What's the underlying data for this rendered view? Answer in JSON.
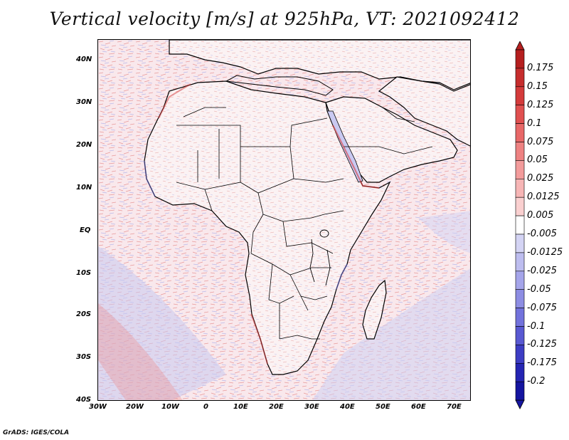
{
  "title": "Vertical velocity [m/s] at 925hPa, VT: 2021092412",
  "credit": "GrADS: IGES/COLA",
  "map": {
    "lat_labels": [
      "40N",
      "30N",
      "20N",
      "10N",
      "EQ",
      "10S",
      "20S",
      "30S",
      "40S"
    ],
    "lon_labels": [
      "30W",
      "20W",
      "10W",
      "0",
      "10E",
      "20E",
      "30E",
      "40E",
      "50E",
      "60E",
      "70E"
    ],
    "lon_range": [
      -30,
      75
    ],
    "lat_range": [
      -40,
      45
    ]
  },
  "colorbar": {
    "levels": [
      "0.175",
      "0.15",
      "0.125",
      "0.1",
      "0.075",
      "0.05",
      "0.025",
      "0.0125",
      "0.005",
      "-0.005",
      "-0.0125",
      "-0.025",
      "-0.05",
      "-0.075",
      "-0.1",
      "-0.125",
      "-0.175",
      "-0.2"
    ],
    "colors": [
      "#b51f1f",
      "#c62d2d",
      "#d43b3b",
      "#e05050",
      "#e86868",
      "#ee8282",
      "#f39c9c",
      "#f7b6b6",
      "#fad0d0",
      "#ffffff",
      "#d4d4f4",
      "#bdbdef",
      "#a5a5ea",
      "#8d8de3",
      "#7272dc",
      "#5959d2",
      "#3d3dc4",
      "#2525b3",
      "#1515a0"
    ]
  }
}
